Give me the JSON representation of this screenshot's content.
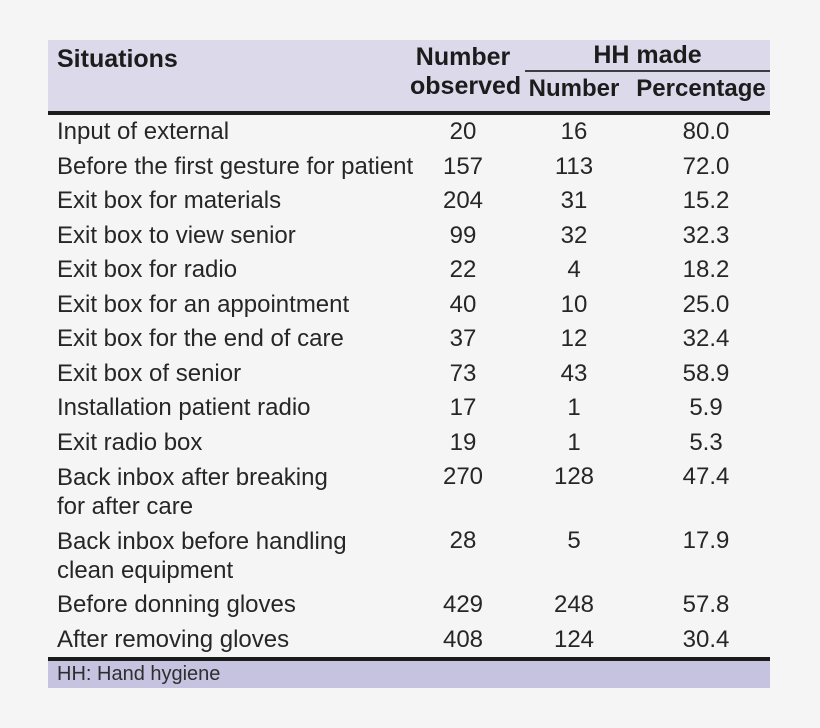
{
  "table": {
    "header": {
      "situations": "Situations",
      "observed_line1": "Number",
      "observed_line2": "observed",
      "hh_made": "HH made",
      "hh_number": "Number",
      "hh_percentage": "Percentage"
    },
    "rows": [
      {
        "label": "Input of external",
        "label2": "",
        "observed": "20",
        "number": "16",
        "percentage": "80.0"
      },
      {
        "label": "Before the first gesture for patient",
        "label2": "",
        "observed": "157",
        "number": "113",
        "percentage": "72.0"
      },
      {
        "label": "Exit box for materials",
        "label2": "",
        "observed": "204",
        "number": "31",
        "percentage": "15.2"
      },
      {
        "label": "Exit box to view senior",
        "label2": "",
        "observed": "99",
        "number": "32",
        "percentage": "32.3"
      },
      {
        "label": "Exit box for radio",
        "label2": "",
        "observed": "22",
        "number": "4",
        "percentage": "18.2"
      },
      {
        "label": "Exit box for an appointment",
        "label2": "",
        "observed": "40",
        "number": "10",
        "percentage": "25.0"
      },
      {
        "label": "Exit box for the end of care",
        "label2": "",
        "observed": "37",
        "number": "12",
        "percentage": "32.4"
      },
      {
        "label": "Exit box of senior",
        "label2": "",
        "observed": "73",
        "number": "43",
        "percentage": "58.9"
      },
      {
        "label": "Installation patient radio",
        "label2": "",
        "observed": "17",
        "number": "1",
        "percentage": "5.9"
      },
      {
        "label": "Exit radio box",
        "label2": "",
        "observed": "19",
        "number": "1",
        "percentage": "5.3"
      },
      {
        "label": "Back inbox after breaking",
        "label2": "for after care",
        "observed": "270",
        "number": "128",
        "percentage": "47.4"
      },
      {
        "label": "Back inbox before handling",
        "label2": "clean equipment",
        "observed": "28",
        "number": "5",
        "percentage": "17.9"
      },
      {
        "label": "Before donning gloves",
        "label2": "",
        "observed": "429",
        "number": "248",
        "percentage": "57.8"
      },
      {
        "label": "After removing gloves",
        "label2": "",
        "observed": "408",
        "number": "124",
        "percentage": "30.4"
      }
    ],
    "footnote": "HH: Hand hygiene"
  },
  "colors": {
    "page_bg": "#f6f5f6",
    "header_band": "#dcdaea",
    "footer_band": "#c5c3e0",
    "rule_dark": "#1c1c1c",
    "rule_thin": "#3d3d3d",
    "text": "#262626",
    "header_text": "#1c1c1c"
  }
}
